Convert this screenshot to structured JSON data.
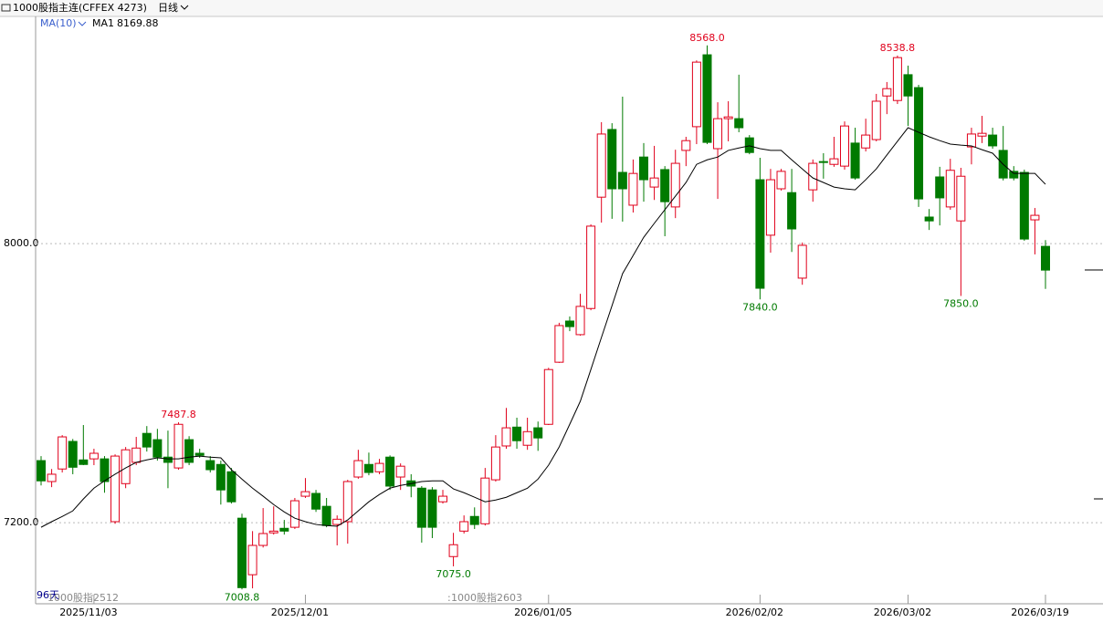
{
  "chart_data": {
    "type": "candlestick",
    "title": "1000股指主连(CFFEX 4273)",
    "period": "日线",
    "indicator": "MA(10)",
    "categories": [
      null,
      null,
      null,
      null,
      null,
      "2025/11/03",
      null,
      null,
      null,
      null,
      null,
      null,
      null,
      null,
      null,
      null,
      null,
      null,
      null,
      null,
      null,
      null,
      null,
      null,
      null,
      "2025/12/01",
      null,
      null,
      null,
      null,
      null,
      null,
      null,
      null,
      null,
      null,
      null,
      null,
      null,
      null,
      null,
      null,
      null,
      null,
      null,
      null,
      null,
      null,
      "2026/01/05",
      null,
      null,
      null,
      null,
      null,
      null,
      null,
      null,
      null,
      null,
      null,
      null,
      null,
      null,
      null,
      null,
      null,
      null,
      null,
      "2026/02/02",
      null,
      null,
      null,
      null,
      null,
      null,
      null,
      null,
      null,
      null,
      null,
      null,
      null,
      "2026/03/02",
      null,
      null,
      null,
      null,
      null,
      null,
      null,
      null,
      null,
      null,
      null,
      null,
      "2026/03/19"
    ],
    "open": [
      7378,
      7318,
      7354,
      7433,
      7380,
      7383,
      7383,
      7203,
      7312,
      7373,
      7456,
      7438,
      7388,
      7357,
      7438,
      7399,
      7378,
      7367,
      7346,
      7213,
      7051,
      7135,
      7171,
      7184,
      7187,
      7276,
      7284,
      7247,
      7195,
      7203,
      7331,
      7367,
      7346,
      7388,
      7331,
      7320,
      7299,
      7294,
      7260,
      7103,
      7176,
      7218,
      7197,
      7323,
      7420,
      7474,
      7422,
      7472,
      7482,
      7660,
      7778,
      7739,
      7814,
      8133,
      8327,
      8204,
      8110,
      8248,
      8162,
      8212,
      8105,
      8267,
      8335,
      8541,
      8272,
      8358,
      8358,
      8303,
      8183,
      8024,
      8157,
      8146,
      7901,
      8154,
      8235,
      8227,
      8222,
      8288,
      8274,
      8298,
      8423,
      8410,
      8484,
      8447,
      8076,
      8191,
      8105,
      8065,
      8277,
      8308,
      8311,
      8267,
      8207,
      8204,
      8068,
      7992
    ],
    "high": [
      7391,
      7354,
      7451,
      7440,
      7480,
      7412,
      7391,
      7396,
      7417,
      7446,
      7477,
      7469,
      7464,
      7487.8,
      7448,
      7412,
      7391,
      7378,
      7357,
      7226,
      7176,
      7242,
      7247,
      7208,
      7271,
      7328,
      7294,
      7271,
      7221,
      7323,
      7409,
      7401,
      7383,
      7393,
      7370,
      7339,
      7305,
      7302,
      7294,
      7171,
      7221,
      7244,
      7357,
      7451,
      7529,
      7501,
      7501,
      7490,
      7644,
      7773,
      7791,
      7856,
      8055,
      8348,
      8345,
      8421,
      8241,
      8288,
      8280,
      8222,
      8269,
      8306,
      8525,
      8568,
      8405,
      8408,
      8484,
      8311,
      8246,
      8214,
      8214,
      8214,
      8003,
      8241,
      8259,
      8306,
      8350,
      8332,
      8358,
      8429,
      8463,
      8538.8,
      8510,
      8455,
      8099,
      8220,
      8243,
      8217,
      8332,
      8366,
      8332,
      8337,
      8222,
      8212,
      8102,
      8010
    ],
    "low": [
      7307,
      7302,
      7344,
      7339,
      7365,
      7365,
      7286,
      7197,
      7299,
      7365,
      7404,
      7378,
      7299,
      7352,
      7365,
      7386,
      7344,
      7252,
      7255,
      7008.8,
      7012,
      7129,
      7166,
      7166,
      7182,
      7271,
      7231,
      7187,
      7135,
      7140,
      7326,
      7336,
      7339,
      7294,
      7294,
      7273,
      7143,
      7156,
      7255,
      7075,
      7169,
      7182,
      7192,
      7318,
      7412,
      7412,
      7409,
      7406,
      7480,
      7658,
      7749,
      7736,
      7809,
      8060,
      8071,
      8063,
      8089,
      8120,
      8125,
      8021,
      8073,
      8222,
      8285,
      8285,
      8128,
      8293,
      8319,
      8256,
      7840,
      7974,
      8152,
      7976,
      7882,
      8120,
      8186,
      8220,
      8212,
      8183,
      8264,
      8293,
      8371,
      8400,
      8337,
      8105,
      8039,
      8052,
      8097,
      7850,
      8227,
      8288,
      8272,
      8181,
      8181,
      8008,
      7969,
      7870
    ],
    "close": [
      7320,
      7339,
      7446,
      7359,
      7367,
      7399,
      7318,
      7391,
      7409,
      7414,
      7417,
      7388,
      7373,
      7482,
      7373,
      7393,
      7352,
      7294,
      7260,
      7014,
      7135,
      7169,
      7176,
      7176,
      7263,
      7289,
      7239,
      7192,
      7210,
      7318,
      7378,
      7344,
      7370,
      7305,
      7362,
      7305,
      7187,
      7187,
      7276,
      7137,
      7203,
      7195,
      7328,
      7417,
      7472,
      7435,
      7461,
      7443,
      7639,
      7765,
      7762,
      7820,
      8050,
      8314,
      8157,
      8157,
      8201,
      8183,
      8188,
      8120,
      8230,
      8295,
      8520,
      8290,
      8358,
      8363,
      8332,
      8261,
      7872,
      8183,
      8207,
      8042,
      7995,
      8230,
      8233,
      8243,
      8337,
      8188,
      8311,
      8408,
      8444,
      8533,
      8423,
      8128,
      8065,
      8131,
      8210,
      8193,
      8314,
      8316,
      8280,
      8188,
      8188,
      8013,
      8081,
      7924
    ],
    "up_color": "#e0001b",
    "down_color": "#007a00",
    "ma": {
      "name": "MA1",
      "color": "#000000",
      "values": [
        7187,
        7203,
        7218,
        7234,
        7268,
        7299,
        7320,
        7339,
        7357,
        7373,
        7380,
        7386,
        7383,
        7383,
        7388,
        7391,
        7388,
        7386,
        7352,
        7325,
        7299,
        7276,
        7252,
        7231,
        7213,
        7203,
        7195,
        7192,
        7190,
        7208,
        7234,
        7260,
        7281,
        7299,
        7307,
        7312,
        7318,
        7320,
        7320,
        7297,
        7286,
        7273,
        7260,
        7265,
        7273,
        7286,
        7299,
        7325,
        7365,
        7417,
        7482,
        7548,
        7639,
        7731,
        7822,
        7914,
        7966,
        8018,
        8058,
        8097,
        8136,
        8175,
        8227,
        8240,
        8248,
        8267,
        8274,
        8280,
        8272,
        8267,
        8267,
        8240,
        8214,
        8188,
        8175,
        8162,
        8157,
        8154,
        8183,
        8214,
        8254,
        8293,
        8332,
        8319,
        8306,
        8295,
        8285,
        8282,
        8280,
        8269,
        8259,
        8227,
        8201,
        8201,
        8201,
        8169.88
      ]
    },
    "ylim": [
      6973,
      8651
    ],
    "yticks": [
      {
        "value": 7200,
        "label": "7200.0"
      },
      {
        "value": 8000,
        "label": "8000.0"
      }
    ],
    "grid": true,
    "annotations": [
      {
        "value": 8568,
        "label": "8568.0"
      },
      {
        "value": 8538.8,
        "label": "8538.8"
      },
      {
        "value": 7487.8,
        "label": "7487.8"
      },
      {
        "value": 7008.8,
        "label": "7008.8"
      },
      {
        "value": 7840,
        "label": "7840.0"
      },
      {
        "value": 7075,
        "label": "7075.0"
      },
      {
        "value": 7850,
        "label": "7850.0"
      }
    ],
    "day_count": "96天",
    "contracts": [
      "1000股指2512",
      "1000股指2603"
    ]
  }
}
